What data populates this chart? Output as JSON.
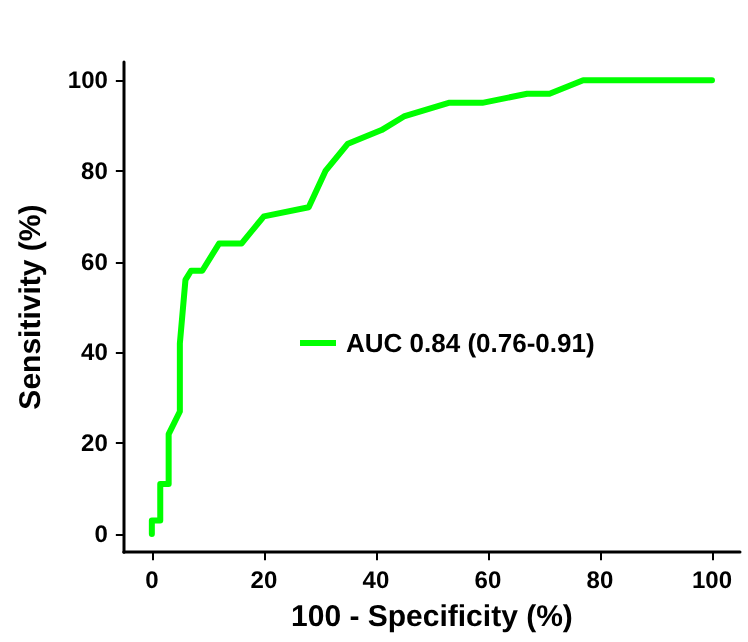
{
  "chart_data": {
    "type": "line",
    "xlabel": "100 - Specificity (%)",
    "ylabel": "Sensitivity (%)",
    "x": [
      0,
      0,
      1.5,
      1.5,
      3,
      3,
      5,
      5,
      6,
      7,
      9,
      12,
      16,
      20,
      28,
      31,
      35,
      41,
      45,
      53,
      59,
      67,
      71,
      77,
      100
    ],
    "series": [
      {
        "name": "AUC 0.84 (0.76-0.91)",
        "color": "#00ff00",
        "values": [
          0,
          3,
          3,
          11,
          11,
          22,
          27,
          42,
          56,
          58,
          58,
          64,
          64,
          70,
          72,
          80,
          86,
          89,
          92,
          95,
          95,
          97,
          97,
          100,
          100
        ]
      }
    ],
    "xlim": [
      -5,
      105
    ],
    "xticks": [
      0,
      20,
      40,
      60,
      80,
      100
    ],
    "ylim": [
      -4,
      104
    ],
    "yticks": [
      0,
      20,
      40,
      60,
      80,
      100
    ],
    "grid": false,
    "legend": "right",
    "marker": "none",
    "line_style": "solid"
  }
}
